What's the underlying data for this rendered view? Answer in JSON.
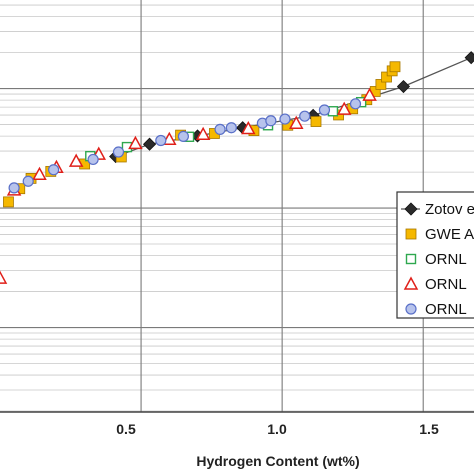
{
  "chart_data": {
    "type": "scatter",
    "title": "",
    "xlabel": "Hydrogen Content (wt%)",
    "ylabel": "",
    "xlim": [
      0.0,
      1.68
    ],
    "x_ticks": [
      "0.5",
      "1.0",
      "1.5"
    ],
    "x_tick_values": [
      0.5,
      1.0,
      1.5
    ],
    "y_scale": "log",
    "grid": true,
    "legend_position": "right",
    "legend_entries": [
      "Zotov e",
      "GWE A",
      "ORNL",
      "ORNL",
      "ORNL"
    ],
    "series": [
      {
        "name": "Zotov e",
        "marker": "diamond",
        "line": true,
        "color": "#555555",
        "fill": "#2b2b2b",
        "points": [
          {
            "x": 0.41,
            "y": 0.62
          },
          {
            "x": 0.53,
            "y": 0.65
          },
          {
            "x": 0.7,
            "y": 0.67
          },
          {
            "x": 0.86,
            "y": 0.69
          },
          {
            "x": 1.11,
            "y": 0.72
          },
          {
            "x": 1.43,
            "y": 0.79
          },
          {
            "x": 1.67,
            "y": 0.86
          }
        ]
      },
      {
        "name": "GWE A",
        "marker": "square",
        "line": false,
        "color": "#a77800",
        "fill": "#f5b800",
        "points": [
          {
            "x": 0.03,
            "y": 0.51
          },
          {
            "x": 0.07,
            "y": 0.542
          },
          {
            "x": 0.11,
            "y": 0.567
          },
          {
            "x": 0.18,
            "y": 0.584
          },
          {
            "x": 0.3,
            "y": 0.602
          },
          {
            "x": 0.43,
            "y": 0.619
          },
          {
            "x": 0.64,
            "y": 0.672
          },
          {
            "x": 0.76,
            "y": 0.676
          },
          {
            "x": 0.9,
            "y": 0.683
          },
          {
            "x": 1.02,
            "y": 0.696
          },
          {
            "x": 1.12,
            "y": 0.705
          },
          {
            "x": 1.2,
            "y": 0.721
          },
          {
            "x": 1.25,
            "y": 0.736
          },
          {
            "x": 1.3,
            "y": 0.758
          },
          {
            "x": 1.33,
            "y": 0.778
          },
          {
            "x": 1.35,
            "y": 0.795
          },
          {
            "x": 1.37,
            "y": 0.813
          },
          {
            "x": 1.39,
            "y": 0.828
          },
          {
            "x": 1.4,
            "y": 0.838
          }
        ]
      },
      {
        "name": "ORNL",
        "marker": "open-square",
        "line": false,
        "color": "#2fa84f",
        "fill": "none",
        "points": [
          {
            "x": 0.32,
            "y": 0.621
          },
          {
            "x": 0.45,
            "y": 0.643
          },
          {
            "x": 0.67,
            "y": 0.668
          },
          {
            "x": 0.95,
            "y": 0.696
          },
          {
            "x": 1.18,
            "y": 0.73
          },
          {
            "x": 1.28,
            "y": 0.752
          }
        ]
      },
      {
        "name": "ORNL",
        "marker": "triangle",
        "line": false,
        "color": "#e0201a",
        "fill": "none",
        "points": [
          {
            "x": 0.0,
            "y": 0.325
          },
          {
            "x": 0.05,
            "y": 0.539
          },
          {
            "x": 0.14,
            "y": 0.577
          },
          {
            "x": 0.2,
            "y": 0.594
          },
          {
            "x": 0.27,
            "y": 0.609
          },
          {
            "x": 0.35,
            "y": 0.626
          },
          {
            "x": 0.48,
            "y": 0.652
          },
          {
            "x": 0.6,
            "y": 0.662
          },
          {
            "x": 0.72,
            "y": 0.674
          },
          {
            "x": 0.88,
            "y": 0.688
          },
          {
            "x": 1.05,
            "y": 0.701
          },
          {
            "x": 1.22,
            "y": 0.735
          },
          {
            "x": 1.31,
            "y": 0.769
          }
        ]
      },
      {
        "name": "ORNL",
        "marker": "circle",
        "line": false,
        "color": "#5a70c8",
        "fill": "#b7c3ec",
        "points": [
          {
            "x": 0.05,
            "y": 0.544
          },
          {
            "x": 0.1,
            "y": 0.56
          },
          {
            "x": 0.19,
            "y": 0.588
          },
          {
            "x": 0.33,
            "y": 0.613
          },
          {
            "x": 0.42,
            "y": 0.631
          },
          {
            "x": 0.57,
            "y": 0.659
          },
          {
            "x": 0.65,
            "y": 0.669
          },
          {
            "x": 0.78,
            "y": 0.686
          },
          {
            "x": 0.82,
            "y": 0.69
          },
          {
            "x": 0.93,
            "y": 0.701
          },
          {
            "x": 0.96,
            "y": 0.707
          },
          {
            "x": 1.01,
            "y": 0.711
          },
          {
            "x": 1.08,
            "y": 0.718
          },
          {
            "x": 1.15,
            "y": 0.733
          },
          {
            "x": 1.26,
            "y": 0.748
          }
        ]
      }
    ]
  }
}
